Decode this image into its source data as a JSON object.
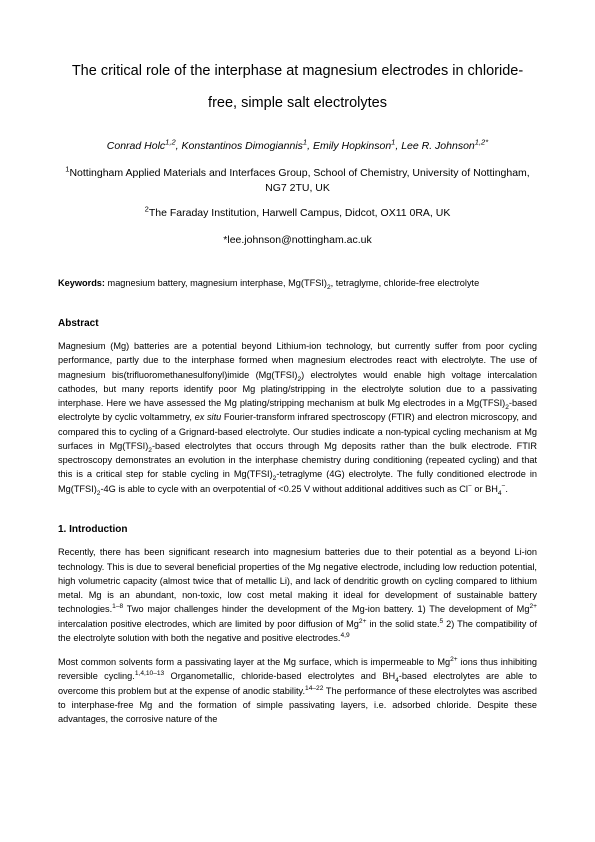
{
  "title": "The critical role of the interphase at magnesium electrodes in chloride-free, simple salt electrolytes",
  "authors_html": "Conrad Holc<sup>1,2</sup>, Konstantinos Dimogiannis<sup>1</sup>, Emily Hopkinson<sup>1</sup>, Lee R. Johnson<sup>1,2*</sup>",
  "affil1_html": "<sup>1</sup>Nottingham Applied Materials and Interfaces Group, School of Chemistry, University of Nottingham, NG7 2TU, UK",
  "affil2_html": "<sup>2</sup>The Faraday Institution, Harwell Campus, Didcot, OX11 0RA, UK",
  "email": "*lee.johnson@nottingham.ac.uk",
  "keywords_label": "Keywords:",
  "keywords_text_html": " magnesium battery, magnesium interphase, Mg(TFSI)<sub>2</sub>, tetraglyme, chloride-free electrolyte",
  "abstract_heading": "Abstract",
  "abstract_html": "Magnesium (Mg) batteries are a potential beyond Lithium-ion technology, but currently suffer from poor cycling performance, partly due to the interphase formed when magnesium electrodes react with electrolyte. The use of magnesium bis(trifluoromethanesulfonyl)imide (Mg(TFSI)<sub>2</sub>) electrolytes would enable high voltage intercalation cathodes, but many reports identify poor Mg plating/stripping in the electrolyte solution due to a passivating interphase. Here we have assessed the Mg plating/stripping mechanism at bulk Mg electrodes in a Mg(TFSI)<sub>2</sub>-based electrolyte by cyclic voltammetry, <span class=\"it\">ex situ</span> Fourier-transform infrared spectroscopy (FTIR) and electron microscopy, and compared this to cycling of a Grignard-based electrolyte. Our studies indicate a non-typical cycling mechanism at Mg surfaces in Mg(TFSI)<sub>2</sub>-based electrolytes that occurs through Mg deposits rather than the bulk electrode. FTIR spectroscopy demonstrates an evolution in the interphase chemistry during conditioning (repeated cycling) and that this is a critical step for stable cycling in Mg(TFSI)<sub>2</sub>-tetraglyme (4G) electrolyte. The fully conditioned electrode in Mg(TFSI)<sub>2</sub>-4G is able to cycle with an overpotential of <0.25 V without additional additives such as Cl<sup>−</sup> or BH<sub>4</sub><sup>−</sup>.",
  "intro_heading": "1. Introduction",
  "intro_p1_html": "Recently, there has been significant research into magnesium batteries due to their potential as a beyond Li-ion technology. This is due to several beneficial properties of the Mg negative electrode, including low reduction potential, high volumetric capacity (almost twice that of metallic Li), and lack of dendritic growth on cycling compared to lithium metal. Mg is an abundant, non-toxic, low cost metal making it ideal for development of sustainable battery technologies.<sup>1–8</sup> Two major challenges hinder the development of the Mg-ion battery. 1) The development of Mg<sup>2+</sup> intercalation positive electrodes, which are limited by poor diffusion of Mg<sup>2+</sup> in the solid state.<sup>5</sup> 2) The compatibility of the electrolyte solution with both the negative and positive electrodes.<sup>4,9</sup>",
  "intro_p2_html": "Most common solvents form a passivating layer at the Mg surface, which is impermeable to Mg<sup>2+</sup> ions thus inhibiting reversible cycling.<sup>1,4,10–13</sup> Organometallic, chloride-based electrolytes and BH<sub>4</sub>-based electrolytes are able to overcome this problem but at the expense of anodic stability.<sup>14–22</sup> The performance of these electrolytes was ascribed to interphase-free Mg and the formation of simple passivating layers, i.e. adsorbed chloride. Despite these advantages, the corrosive nature of the",
  "colors": {
    "text": "#000000",
    "background": "#ffffff"
  },
  "typography": {
    "body_font": "Arial",
    "body_size_pt": 9.2,
    "title_size_pt": 14.5,
    "affil_size_pt": 10.5
  }
}
